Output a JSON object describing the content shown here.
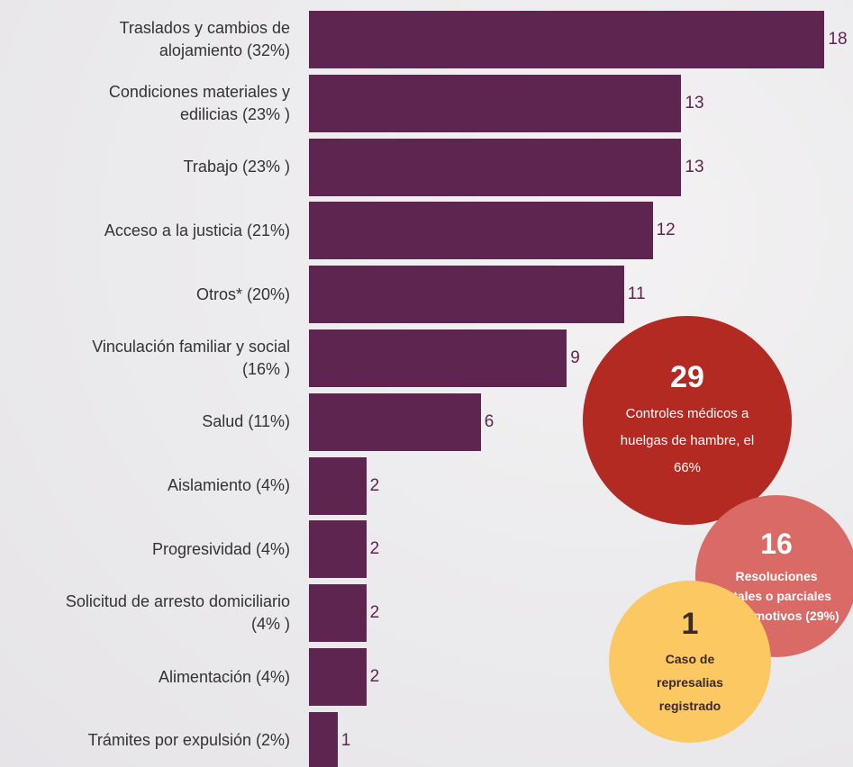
{
  "chart_data": {
    "type": "bar",
    "orientation": "horizontal",
    "categories": [
      "Traslados y cambios de\nalojamiento (32%)",
      "Condiciones materiales y\nedilicias (23% )",
      "Trabajo (23% )",
      "Acceso a la justicia (21%)",
      "Otros* (20%)",
      "Vinculación familiar y social\n(16% )",
      "Salud (11%)",
      "Aislamiento (4%)",
      "Progresividad (4%)",
      "Solicitud de arresto domiciliario\n(4% )",
      "Alimentación (4%)",
      "Trámites por expulsión (2%)"
    ],
    "values": [
      18,
      13,
      13,
      12,
      11,
      9,
      6,
      2,
      2,
      2,
      2,
      1
    ],
    "color": "#5e2550",
    "annotations": [
      {
        "value": 29,
        "text": "Controles médicos a huelgas de hambre, el 66%",
        "color": "#b22a22"
      },
      {
        "value": 16,
        "text": "Resoluciones totales o parciales de los motivos (29%)",
        "color": "#d96a66"
      },
      {
        "value": 1,
        "text": "Caso de represalias registrado",
        "color": "#fcc862"
      }
    ]
  }
}
